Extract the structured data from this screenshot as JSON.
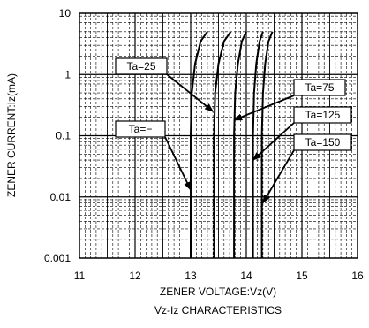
{
  "chart_data": {
    "type": "line",
    "title": "",
    "subtitle": "Vz-Iz CHARACTERISTICS",
    "xlabel": "ZENER VOLTAGE:Vz(V)",
    "ylabel": "ZENER CURRENT:Iz(mA)",
    "xlim": [
      11,
      16
    ],
    "ylim": [
      0.001,
      10
    ],
    "yscale": "log",
    "grid": true,
    "x_ticks": [
      "11",
      "12",
      "13",
      "14",
      "15",
      "16"
    ],
    "y_ticks": [
      "10",
      "1",
      "0.1",
      "0.01",
      "0.001"
    ],
    "series": [
      {
        "name": "Ta=-",
        "x": [
          13.0,
          13.0,
          13.0,
          13.02,
          13.08,
          13.18,
          13.3
        ],
        "y": [
          0.001,
          0.01,
          0.1,
          0.5,
          1.5,
          3.5,
          5
        ]
      },
      {
        "name": "Ta=25",
        "x": [
          13.42,
          13.42,
          13.42,
          13.44,
          13.5,
          13.6,
          13.72
        ],
        "y": [
          0.001,
          0.01,
          0.1,
          0.5,
          1.5,
          3.5,
          5
        ]
      },
      {
        "name": "Ta=75",
        "x": [
          13.78,
          13.78,
          13.78,
          13.8,
          13.85,
          13.92,
          14.0
        ],
        "y": [
          0.001,
          0.01,
          0.1,
          0.5,
          1.5,
          3.5,
          5
        ]
      },
      {
        "name": "Ta=125",
        "x": [
          14.12,
          14.12,
          14.12,
          14.14,
          14.18,
          14.24,
          14.3
        ],
        "y": [
          0.001,
          0.01,
          0.1,
          0.5,
          1.5,
          3.5,
          5
        ]
      },
      {
        "name": "Ta=150",
        "x": [
          14.28,
          14.28,
          14.28,
          14.3,
          14.34,
          14.4,
          14.47
        ],
        "y": [
          0.001,
          0.01,
          0.1,
          0.5,
          1.5,
          3.5,
          5
        ]
      }
    ],
    "annotations": [
      {
        "text": "Ta=25",
        "pointer_x": 13.4,
        "pointer_y": 0.25
      },
      {
        "text": "Ta=75",
        "pointer_x": 13.78,
        "pointer_y": 0.18
      },
      {
        "text": "Ta=125",
        "pointer_x": 14.12,
        "pointer_y": 0.04
      },
      {
        "text": "Ta=150",
        "pointer_x": 14.3,
        "pointer_y": 0.008
      },
      {
        "text": "Ta=−",
        "pointer_x": 13.0,
        "pointer_y": 0.013
      }
    ],
    "colors": {
      "line": "#000000",
      "grid": "#000000",
      "background": "#ffffff"
    }
  }
}
